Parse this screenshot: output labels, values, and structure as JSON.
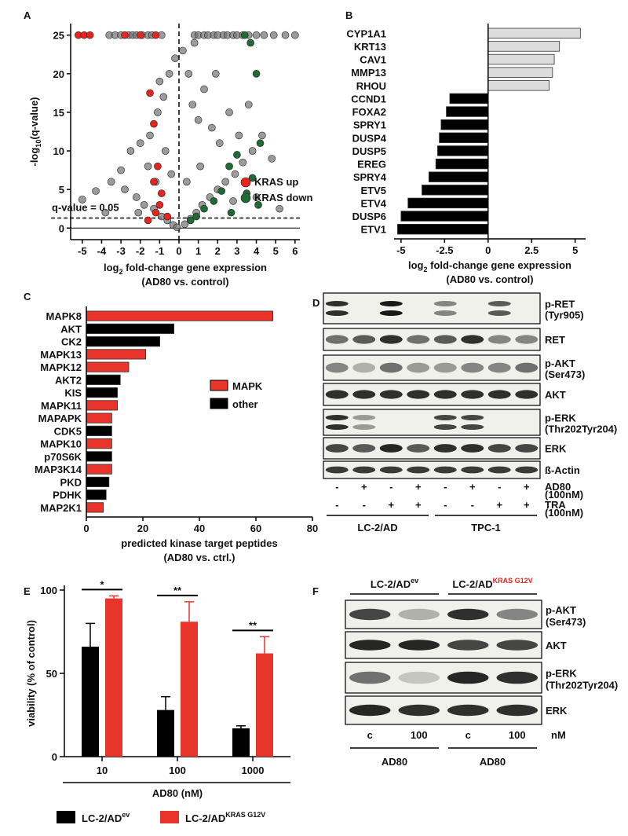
{
  "panels": [
    "A",
    "B",
    "C",
    "D",
    "E",
    "F"
  ],
  "chart_data": [
    {
      "type": "scatter",
      "ylabel": [
        "-log",
        "10",
        "(q-value)"
      ],
      "xlabel": [
        "log",
        "2",
        " fold-change gene expression"
      ],
      "xlabel2": "(AD80 vs. control)",
      "xlim": [
        -5.6,
        6.25
      ],
      "ylim": [
        -1.5,
        26.5
      ],
      "xticks": [
        -5,
        -4,
        -3,
        -2,
        -1,
        0,
        1,
        2,
        3,
        4,
        5,
        6
      ],
      "yticks": [
        0,
        5,
        10,
        15,
        20,
        25
      ],
      "threshold": 1.3,
      "threshold_label": "q-value = 0.05",
      "series": [
        {
          "color": "#7a7a7a",
          "x": [
            -3.6,
            -3.3,
            -3.0,
            -2.6,
            -2.4,
            -2.2,
            -1.9,
            -1.6,
            -1.4,
            -0.9,
            0.8,
            1.0,
            1.3,
            1.5,
            1.8,
            2.0,
            2.3,
            2.5,
            2.8,
            3.0,
            3.3,
            3.6,
            4.0,
            4.4,
            4.9,
            5.5,
            6.0,
            -0.2,
            -0.5,
            -0.8,
            -1.1,
            -1.5,
            -2.0,
            -2.5,
            -3.0,
            -3.5,
            -4.3,
            -5.0,
            -2.8,
            -2.2,
            -1.8,
            -1.3,
            -0.9,
            -0.6,
            -0.3,
            0.3,
            0.6,
            0.9,
            1.2,
            1.6,
            2.0,
            2.4,
            2.9,
            3.3,
            3.8,
            4.3,
            4.8,
            0.5,
            0.7,
            1.0,
            1.3,
            1.7,
            2.1,
            2.6,
            3.1,
            1.1,
            0.4,
            -0.4,
            -0.7,
            -1.2,
            -1.6,
            0.2,
            0.8,
            3.6,
            1.9,
            -1.0,
            -2.1,
            2.8,
            4.0,
            5.2,
            -3.8,
            -0.1
          ],
          "values": [
            25,
            25,
            25,
            25,
            25,
            25,
            25,
            25,
            25,
            25,
            25,
            25,
            25,
            25,
            25,
            25,
            25,
            25,
            25,
            25,
            25,
            25,
            25,
            25,
            25,
            25,
            25,
            22,
            20,
            17,
            15,
            12,
            11,
            10,
            7.5,
            6,
            4.8,
            3.7,
            5,
            4,
            3,
            2.5,
            1.5,
            1,
            0.4,
            0.5,
            1.2,
            2,
            3,
            4,
            5,
            6,
            7,
            8.5,
            10,
            12,
            9,
            20,
            16,
            14,
            18,
            13,
            11,
            15,
            12,
            8,
            6,
            7,
            10,
            6,
            8,
            23,
            24,
            16,
            20,
            19,
            2,
            3.5,
            4,
            2.5,
            2,
            0.1
          ]
        },
        {
          "name": "KRAS up",
          "color": "#e8241f",
          "x": [
            -5.2,
            -4.9,
            -4.6,
            -2.8,
            -2.0,
            -1.2,
            -1.5,
            -1.3,
            -1.1,
            -1.3,
            -0.9,
            -1.0,
            -1.2,
            -0.6,
            -1.6
          ],
          "values": [
            25,
            25,
            25,
            25,
            25,
            25,
            17.5,
            13.5,
            8,
            6,
            4.5,
            3,
            2,
            1.5,
            1
          ]
        },
        {
          "name": "KRAS down",
          "color": "#1e6b35",
          "x": [
            3.4,
            3.7,
            4.0,
            4.2,
            3.0,
            2.6,
            3.8,
            2.2,
            1.8,
            1.3,
            0.9,
            0.6,
            2.7,
            4.1,
            3.5
          ],
          "values": [
            25,
            24,
            20,
            11,
            9.5,
            8,
            6.5,
            4.8,
            3.5,
            2.5,
            1.5,
            1,
            2,
            3,
            4.5
          ]
        }
      ]
    },
    {
      "type": "hbar",
      "categories": [
        "CYP1A1",
        "KRT13",
        "CAV1",
        "MMP13",
        "RHOU",
        "CCND1",
        "FOXA2",
        "SPRY1",
        "DUSP4",
        "DUSP5",
        "EREG",
        "SPRY4",
        "ETV5",
        "ETV4",
        "DUSP6",
        "ETV1"
      ],
      "values": [
        5.3,
        4.1,
        3.8,
        3.7,
        3.5,
        -2.2,
        -2.4,
        -2.7,
        -2.8,
        -2.9,
        -3.0,
        -3.4,
        -3.8,
        -4.6,
        -5.0,
        -5.2
      ],
      "colors": [
        "#dcdcdc",
        "#dcdcdc",
        "#dcdcdc",
        "#dcdcdc",
        "#dcdcdc",
        "#000000",
        "#000000",
        "#000000",
        "#000000",
        "#000000",
        "#000000",
        "#000000",
        "#000000",
        "#000000",
        "#000000",
        "#000000"
      ],
      "xlim": [
        -5.4,
        5.6
      ],
      "xticks": [
        -5,
        -2.5,
        0,
        2.5,
        5
      ],
      "xlabel": [
        "log",
        "2",
        " fold-change gene expression"
      ],
      "xlabel2": "(AD80 vs. control)"
    },
    {
      "type": "hbar",
      "categories": [
        "MAPK8",
        "AKT",
        "CK2",
        "MAPK13",
        "MAPK12",
        "AKT2",
        "KIS",
        "MAPK11",
        "MAPAPK",
        "CDK5",
        "MAPK10",
        "p70S6K",
        "MAP3K14",
        "PKD",
        "PDHK",
        "MAP2K1"
      ],
      "values": [
        66,
        31,
        26,
        21,
        15,
        12,
        11,
        11,
        9,
        9,
        9,
        9,
        9,
        8,
        7,
        6
      ],
      "colors": [
        "#e8342a",
        "#000000",
        "#000000",
        "#e8342a",
        "#e8342a",
        "#000000",
        "#000000",
        "#e8342a",
        "#e8342a",
        "#000000",
        "#e8342a",
        "#000000",
        "#e8342a",
        "#000000",
        "#000000",
        "#e8342a"
      ],
      "legend": [
        {
          "name": "MAPK",
          "color": "#e8342a"
        },
        {
          "name": "other",
          "color": "#000000"
        }
      ],
      "xlim": [
        0,
        80
      ],
      "xticks": [
        0,
        20,
        40,
        60,
        80
      ],
      "xlabel": "predicted kinase target peptides",
      "xlabel2": "(AD80 vs. ctrl.)"
    },
    {
      "type": "grouped_bar",
      "categories": [
        "10",
        "100",
        "1000"
      ],
      "series": [
        {
          "name": "LC-2/AD",
          "name_sup": "ev",
          "color": "#000000",
          "values": [
            66,
            28,
            17
          ],
          "errors": [
            14,
            8,
            1.5
          ]
        },
        {
          "name": "LC-2/AD",
          "name_sup": "KRAS G12V",
          "color": "#e8342a",
          "values": [
            95,
            81,
            62
          ],
          "errors": [
            1.5,
            12,
            10
          ]
        }
      ],
      "ylim": [
        0,
        100
      ],
      "yticks": [
        0,
        50,
        100
      ],
      "ylabel": "viability (% of control)",
      "xlabel": "AD80 (nM)",
      "significance": [
        "*",
        "**",
        "**"
      ]
    }
  ],
  "blot_d": {
    "rows": [
      {
        "label": "p-RET",
        "sub": "(Tyr905)"
      },
      {
        "label": "RET"
      },
      {
        "label": "p-AKT",
        "sub": "(Ser473)"
      },
      {
        "label": "AKT"
      },
      {
        "label": "p-ERK",
        "sub": "(Thr202Tyr204)"
      },
      {
        "label": "ERK"
      },
      {
        "label": "ß-Actin"
      }
    ],
    "treatments": [
      {
        "label": "AD80",
        "sub": "(100nM)",
        "signs": [
          "-",
          "+",
          "-",
          "+",
          "-",
          "+",
          "-",
          "+"
        ]
      },
      {
        "label": "TRA",
        "sub": "(100nM)",
        "signs": [
          "-",
          "-",
          "+",
          "+",
          "-",
          "-",
          "+",
          "+"
        ]
      }
    ],
    "groups": [
      "LC-2/AD",
      "TPC-1"
    ]
  },
  "blot_f": {
    "header": [
      {
        "label": "LC-2/AD",
        "sup": "ev"
      },
      {
        "label": "LC-2/AD",
        "sup": "KRAS G12V"
      }
    ],
    "rows": [
      {
        "label": "p-AKT",
        "sub": "(Ser473)"
      },
      {
        "label": "AKT"
      },
      {
        "label": "p-ERK",
        "sub": "(Thr202Tyr204)"
      },
      {
        "label": "ERK"
      }
    ],
    "lanes": [
      "c",
      "100",
      "c",
      "100"
    ],
    "unit": "nM",
    "groups": [
      "AD80",
      "AD80"
    ]
  }
}
